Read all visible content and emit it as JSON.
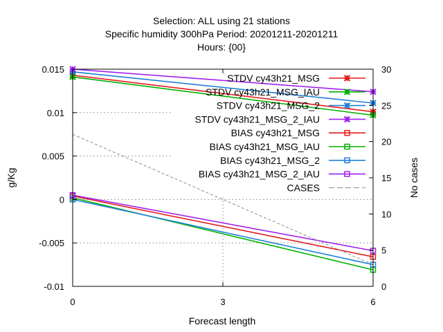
{
  "chart_data": {
    "type": "line",
    "title_lines": [
      "Selection: ALL using    21 stations",
      "Specific humidity 300hPa   Period: 20201211-20201211",
      "Hours: {00}"
    ],
    "xlabel": "Forecast length",
    "ylabel": "g/Kg",
    "y2label": "No cases",
    "x_ticks": [
      0,
      3,
      6
    ],
    "y_ticks": [
      -0.01,
      -0.005,
      0,
      0.005,
      0.01,
      0.015
    ],
    "y_tick_labels": [
      "-0.01",
      "-0.005",
      "0",
      "0.005",
      "0.01",
      "0.015"
    ],
    "y2_ticks": [
      0,
      5,
      10,
      15,
      20,
      25,
      30
    ],
    "xlim": [
      0,
      6
    ],
    "ylim": [
      -0.01,
      0.015
    ],
    "y2lim": [
      0,
      30
    ],
    "grid": true,
    "legend_position": "top-right",
    "series": [
      {
        "name": "STDV cy43h21_MSG",
        "axis": "y",
        "color": "#e41a1c",
        "marker": "x",
        "dash": false,
        "x": [
          0,
          6
        ],
        "values": [
          0.0143,
          0.0101
        ]
      },
      {
        "name": "STDV cy43h21_MSG_IAU",
        "axis": "y",
        "color": "#00b000",
        "marker": "x",
        "dash": false,
        "x": [
          0,
          6
        ],
        "values": [
          0.0141,
          0.0097
        ]
      },
      {
        "name": "STDV cy43h21_MSG_2",
        "axis": "y",
        "color": "#1e7fd8",
        "marker": "x",
        "dash": false,
        "x": [
          0,
          6
        ],
        "values": [
          0.0147,
          0.0111
        ]
      },
      {
        "name": "STDV cy43h21_MSG_2_IAU",
        "axis": "y",
        "color": "#a020f0",
        "marker": "x",
        "dash": false,
        "x": [
          0,
          6
        ],
        "values": [
          0.015,
          0.0124
        ]
      },
      {
        "name": "BIAS cy43h21_MSG",
        "axis": "y",
        "color": "#e41a1c",
        "marker": "square",
        "dash": false,
        "x": [
          0,
          6
        ],
        "values": [
          0.0004,
          -0.0066
        ]
      },
      {
        "name": "BIAS cy43h21_MSG_IAU",
        "axis": "y",
        "color": "#00b000",
        "marker": "square",
        "dash": false,
        "x": [
          0,
          6
        ],
        "values": [
          0.0002,
          -0.0081
        ]
      },
      {
        "name": "BIAS cy43h21_MSG_2",
        "axis": "y",
        "color": "#1e7fd8",
        "marker": "square",
        "dash": false,
        "x": [
          0,
          6
        ],
        "values": [
          0.0,
          -0.0075
        ]
      },
      {
        "name": "BIAS cy43h21_MSG_2_IAU",
        "axis": "y",
        "color": "#a020f0",
        "marker": "square",
        "dash": false,
        "x": [
          0,
          6
        ],
        "values": [
          0.0005,
          -0.0059
        ]
      },
      {
        "name": "CASES",
        "axis": "y2",
        "color": "#888888",
        "marker": "none",
        "dash": true,
        "x": [
          0,
          6
        ],
        "values": [
          21,
          3
        ]
      }
    ]
  }
}
